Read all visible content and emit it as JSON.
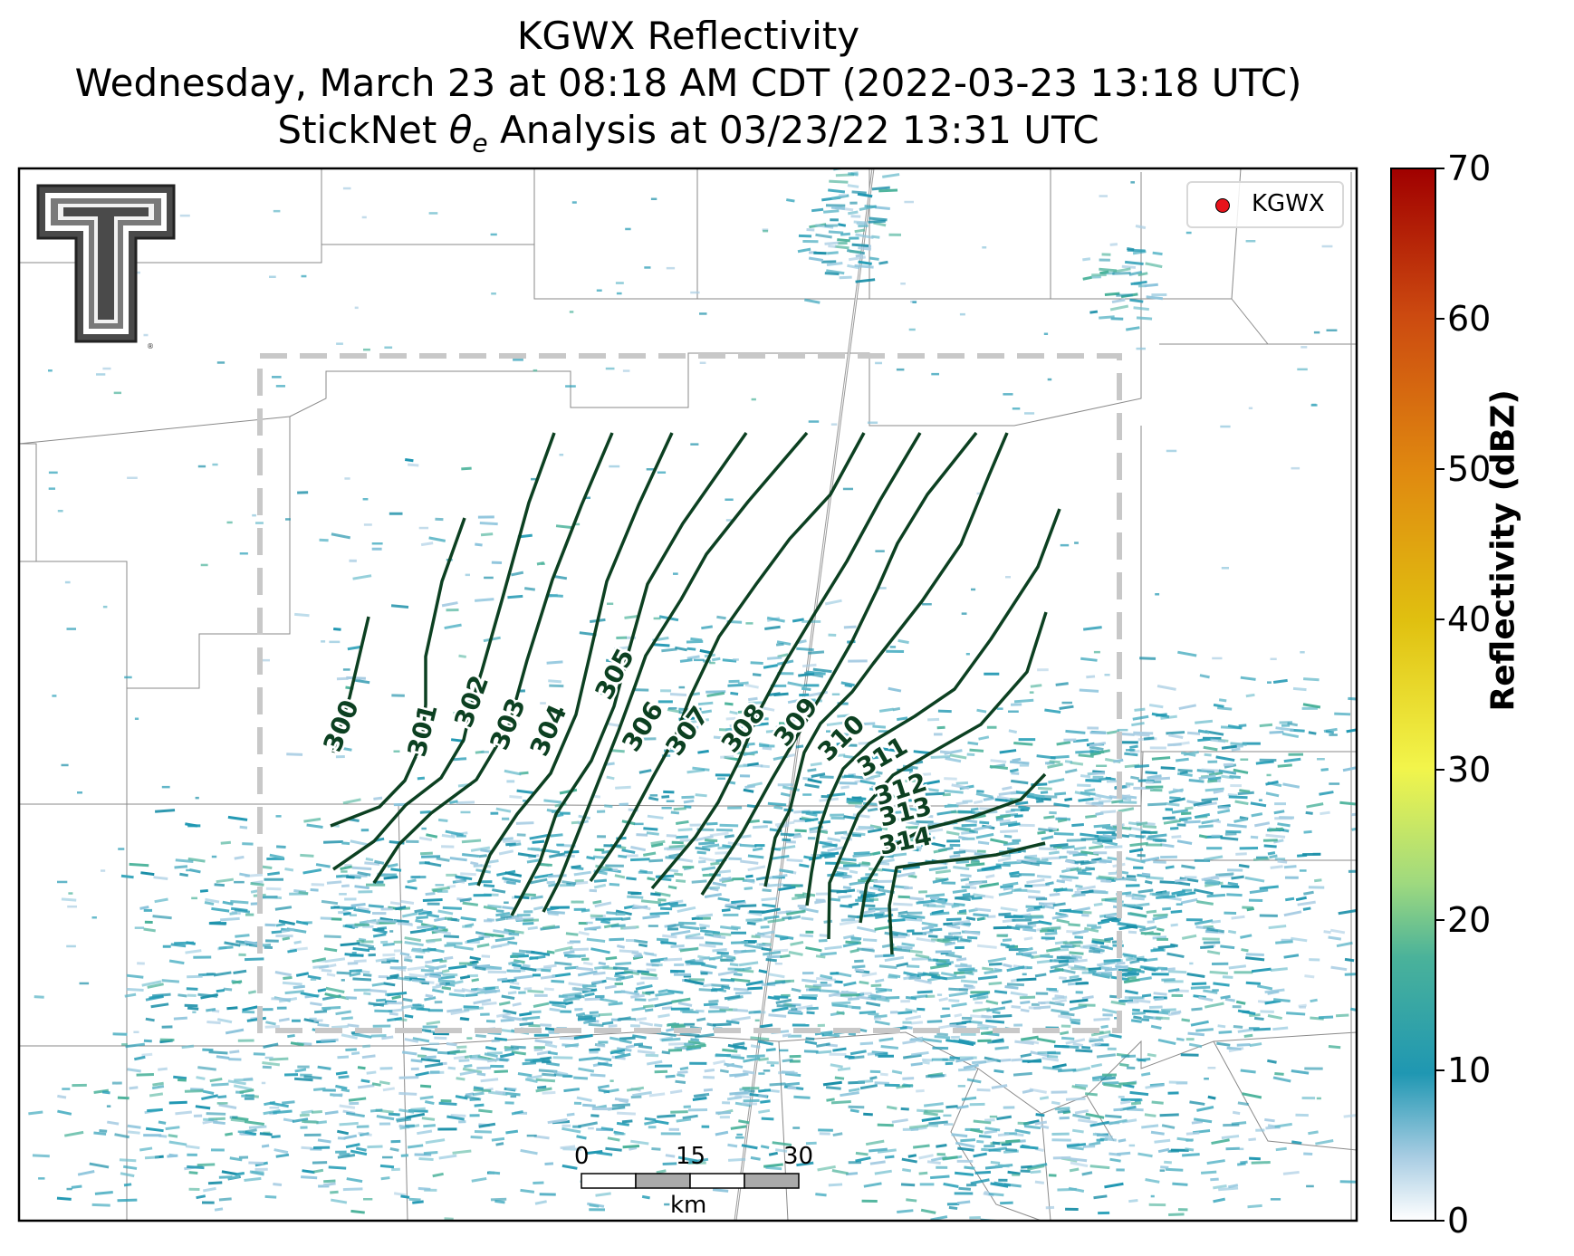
{
  "title": {
    "line1": "KGWX Reflectivity",
    "line2": "Wednesday, March 23 at 08:18 AM CDT (2022-03-23 13:18 UTC)",
    "line3_prefix": "StickNet ",
    "line3_symbol": "θ",
    "line3_sub": "e",
    "line3_suffix": " Analysis at 03/23/22 13:31 UTC"
  },
  "legend": {
    "label": "KGWX",
    "marker_color": "#e8131b"
  },
  "colorbar": {
    "label": "Reflectivity (dBZ)",
    "min": 0,
    "max": 70,
    "ticks": [
      "0",
      "10",
      "20",
      "30",
      "40",
      "50",
      "60",
      "70"
    ],
    "colors": [
      "#ffffff",
      "#a9cde3",
      "#1f97b2",
      "#4ab29a",
      "#9ed97f",
      "#f2f54b",
      "#e0c010",
      "#e08a10",
      "#cc4a10",
      "#a00000"
    ]
  },
  "scalebar": {
    "ticks": [
      "0",
      "15",
      "30"
    ],
    "unit": "km"
  },
  "contours": {
    "color": "#0c4021",
    "labels": [
      "300",
      "301",
      "302",
      "303",
      "304",
      "305",
      "306",
      "307",
      "308",
      "309",
      "310",
      "311",
      "312",
      "313",
      "314"
    ]
  },
  "logo": {
    "name": "Texas Tech Double T"
  }
}
